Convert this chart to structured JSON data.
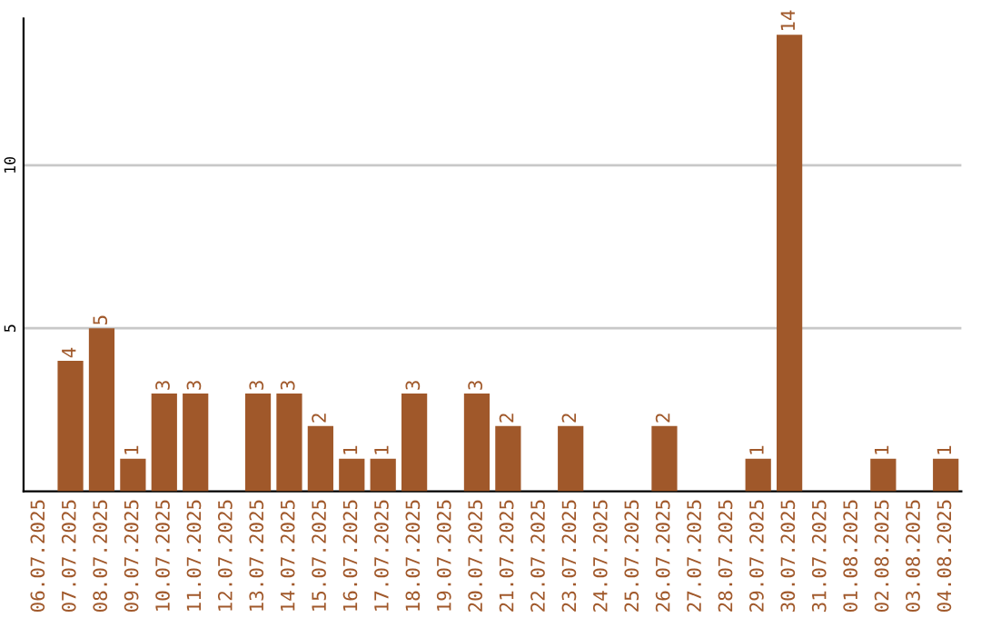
{
  "chart_data": {
    "type": "bar",
    "categories": [
      "06.07.2025",
      "07.07.2025",
      "08.07.2025",
      "09.07.2025",
      "10.07.2025",
      "11.07.2025",
      "12.07.2025",
      "13.07.2025",
      "14.07.2025",
      "15.07.2025",
      "16.07.2025",
      "17.07.2025",
      "18.07.2025",
      "19.07.2025",
      "20.07.2025",
      "21.07.2025",
      "22.07.2025",
      "23.07.2025",
      "24.07.2025",
      "25.07.2025",
      "26.07.2025",
      "27.07.2025",
      "28.07.2025",
      "29.07.2025",
      "30.07.2025",
      "31.07.2025",
      "01.08.2025",
      "02.08.2025",
      "03.08.2025",
      "04.08.2025"
    ],
    "values": [
      0,
      4,
      5,
      1,
      3,
      3,
      0,
      3,
      3,
      2,
      1,
      1,
      3,
      0,
      3,
      2,
      0,
      2,
      0,
      0,
      2,
      0,
      0,
      1,
      14,
      0,
      0,
      1,
      0,
      1
    ],
    "value_labels": [
      null,
      "4",
      "5",
      "1",
      "3",
      "3",
      null,
      "3",
      "3",
      "2",
      "1",
      "1",
      "3",
      null,
      "3",
      "2",
      null,
      "2",
      null,
      null,
      "2",
      null,
      null,
      "1",
      "14",
      null,
      null,
      "1",
      null,
      "1"
    ],
    "color": "#a0582a",
    "ylim": [
      0,
      14.5
    ],
    "yticks": [
      5,
      10
    ],
    "grid": "y"
  }
}
